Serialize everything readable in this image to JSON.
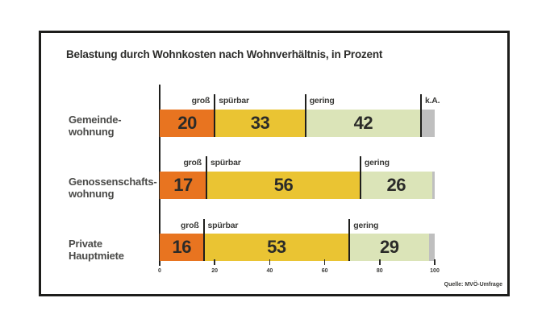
{
  "source": "Quelle: MVÖ-Umfrage",
  "frame": {
    "background": "#ffffff",
    "border_color": "#1d1d1b"
  },
  "chart_data": {
    "type": "bar",
    "stacked": true,
    "orientation": "horizontal",
    "title": "Belastung durch Wohnkosten nach Wohnverhältnis, in Prozent",
    "unit": "Prozent",
    "xlim": [
      0,
      100
    ],
    "x_ticks": [
      0,
      20,
      40,
      60,
      80,
      100
    ],
    "legend": [
      "groß",
      "spürbar",
      "gering",
      "k.A."
    ],
    "segment_colors": [
      "#E87420",
      "#EAC433",
      "#DBE4B8",
      "#BFBFBF"
    ],
    "categories": [
      "Gemeindewohnung",
      "Genossenschaftswohnung",
      "Private Hauptmiete"
    ],
    "rows": [
      {
        "category_lines": [
          "Gemeinde-",
          "wohnung"
        ],
        "segments": [
          {
            "label": "groß",
            "value": 20,
            "value_shown": true
          },
          {
            "label": "spürbar",
            "value": 33,
            "value_shown": true
          },
          {
            "label": "gering",
            "value": 42,
            "value_shown": true
          },
          {
            "label": "k.A.",
            "value": 5,
            "value_shown": false
          }
        ]
      },
      {
        "category_lines": [
          "Genossenschafts-",
          "wohnung"
        ],
        "segments": [
          {
            "label": "groß",
            "value": 17,
            "value_shown": true
          },
          {
            "label": "spürbar",
            "value": 56,
            "value_shown": true
          },
          {
            "label": "gering",
            "value": 26,
            "value_shown": true
          },
          {
            "label": "",
            "value": 1,
            "value_shown": false
          }
        ]
      },
      {
        "category_lines": [
          "Private",
          "Hauptmiete"
        ],
        "segments": [
          {
            "label": "groß",
            "value": 16,
            "value_shown": true
          },
          {
            "label": "spürbar",
            "value": 53,
            "value_shown": true
          },
          {
            "label": "gering",
            "value": 29,
            "value_shown": true
          },
          {
            "label": "",
            "value": 2,
            "value_shown": false
          }
        ]
      }
    ]
  }
}
